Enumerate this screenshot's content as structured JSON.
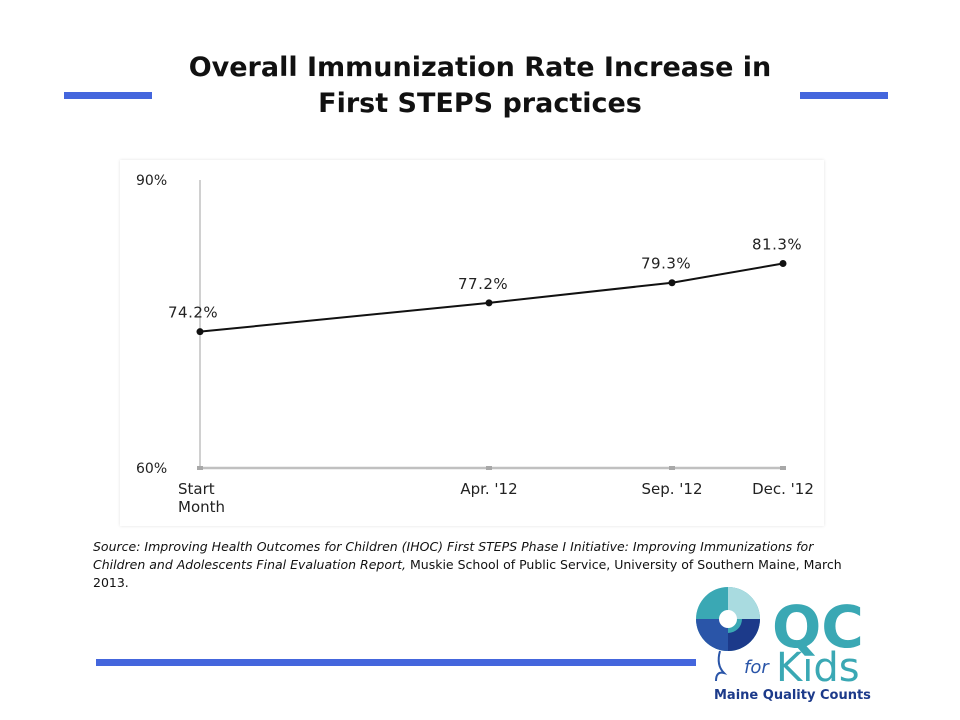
{
  "slide": {
    "title_line1": "Overall Immunization Rate Increase in",
    "title_line2": "First STEPS practices",
    "accent_color": "#4466dd"
  },
  "chart_data": {
    "type": "line",
    "categories": [
      "Start Month",
      "Apr. '12",
      "Sep. '12",
      "Dec. '12"
    ],
    "category_lines": [
      [
        "Start",
        "Month"
      ],
      [
        "Apr. '12"
      ],
      [
        "Sep. '12"
      ],
      [
        "Dec. '12"
      ]
    ],
    "series": [
      {
        "values": [
          74.2,
          77.2,
          79.3,
          81.3
        ]
      }
    ],
    "data_labels": [
      "74.2%",
      "77.2%",
      "79.3%",
      "81.3%"
    ],
    "y_ticks": [
      {
        "value": 60,
        "label": "60%"
      },
      {
        "value": 90,
        "label": "90%"
      }
    ],
    "ylim": [
      60,
      90
    ],
    "title": "",
    "xlabel": "",
    "ylabel": "",
    "line_color": "#111111",
    "axis_color": "#c0c0c0"
  },
  "source": {
    "prefix": "Source: Improving Health Outcomes for Children (IHOC) First STEPS Phase I Initiative:  Improving Immunizations for Children and Adolescents Final Evaluation Report,",
    "rest": " Muskie School of Public Service, University of Southern Maine, March 2013."
  },
  "logo": {
    "big_text": "QC",
    "for_text": "for",
    "kids_text": "Kids",
    "tagline": "Maine Quality Counts",
    "teal": "#3aa8b4",
    "blue": "#2a55a8",
    "dark_blue": "#1c3a8a",
    "icon": "swirl-circle-icon"
  }
}
